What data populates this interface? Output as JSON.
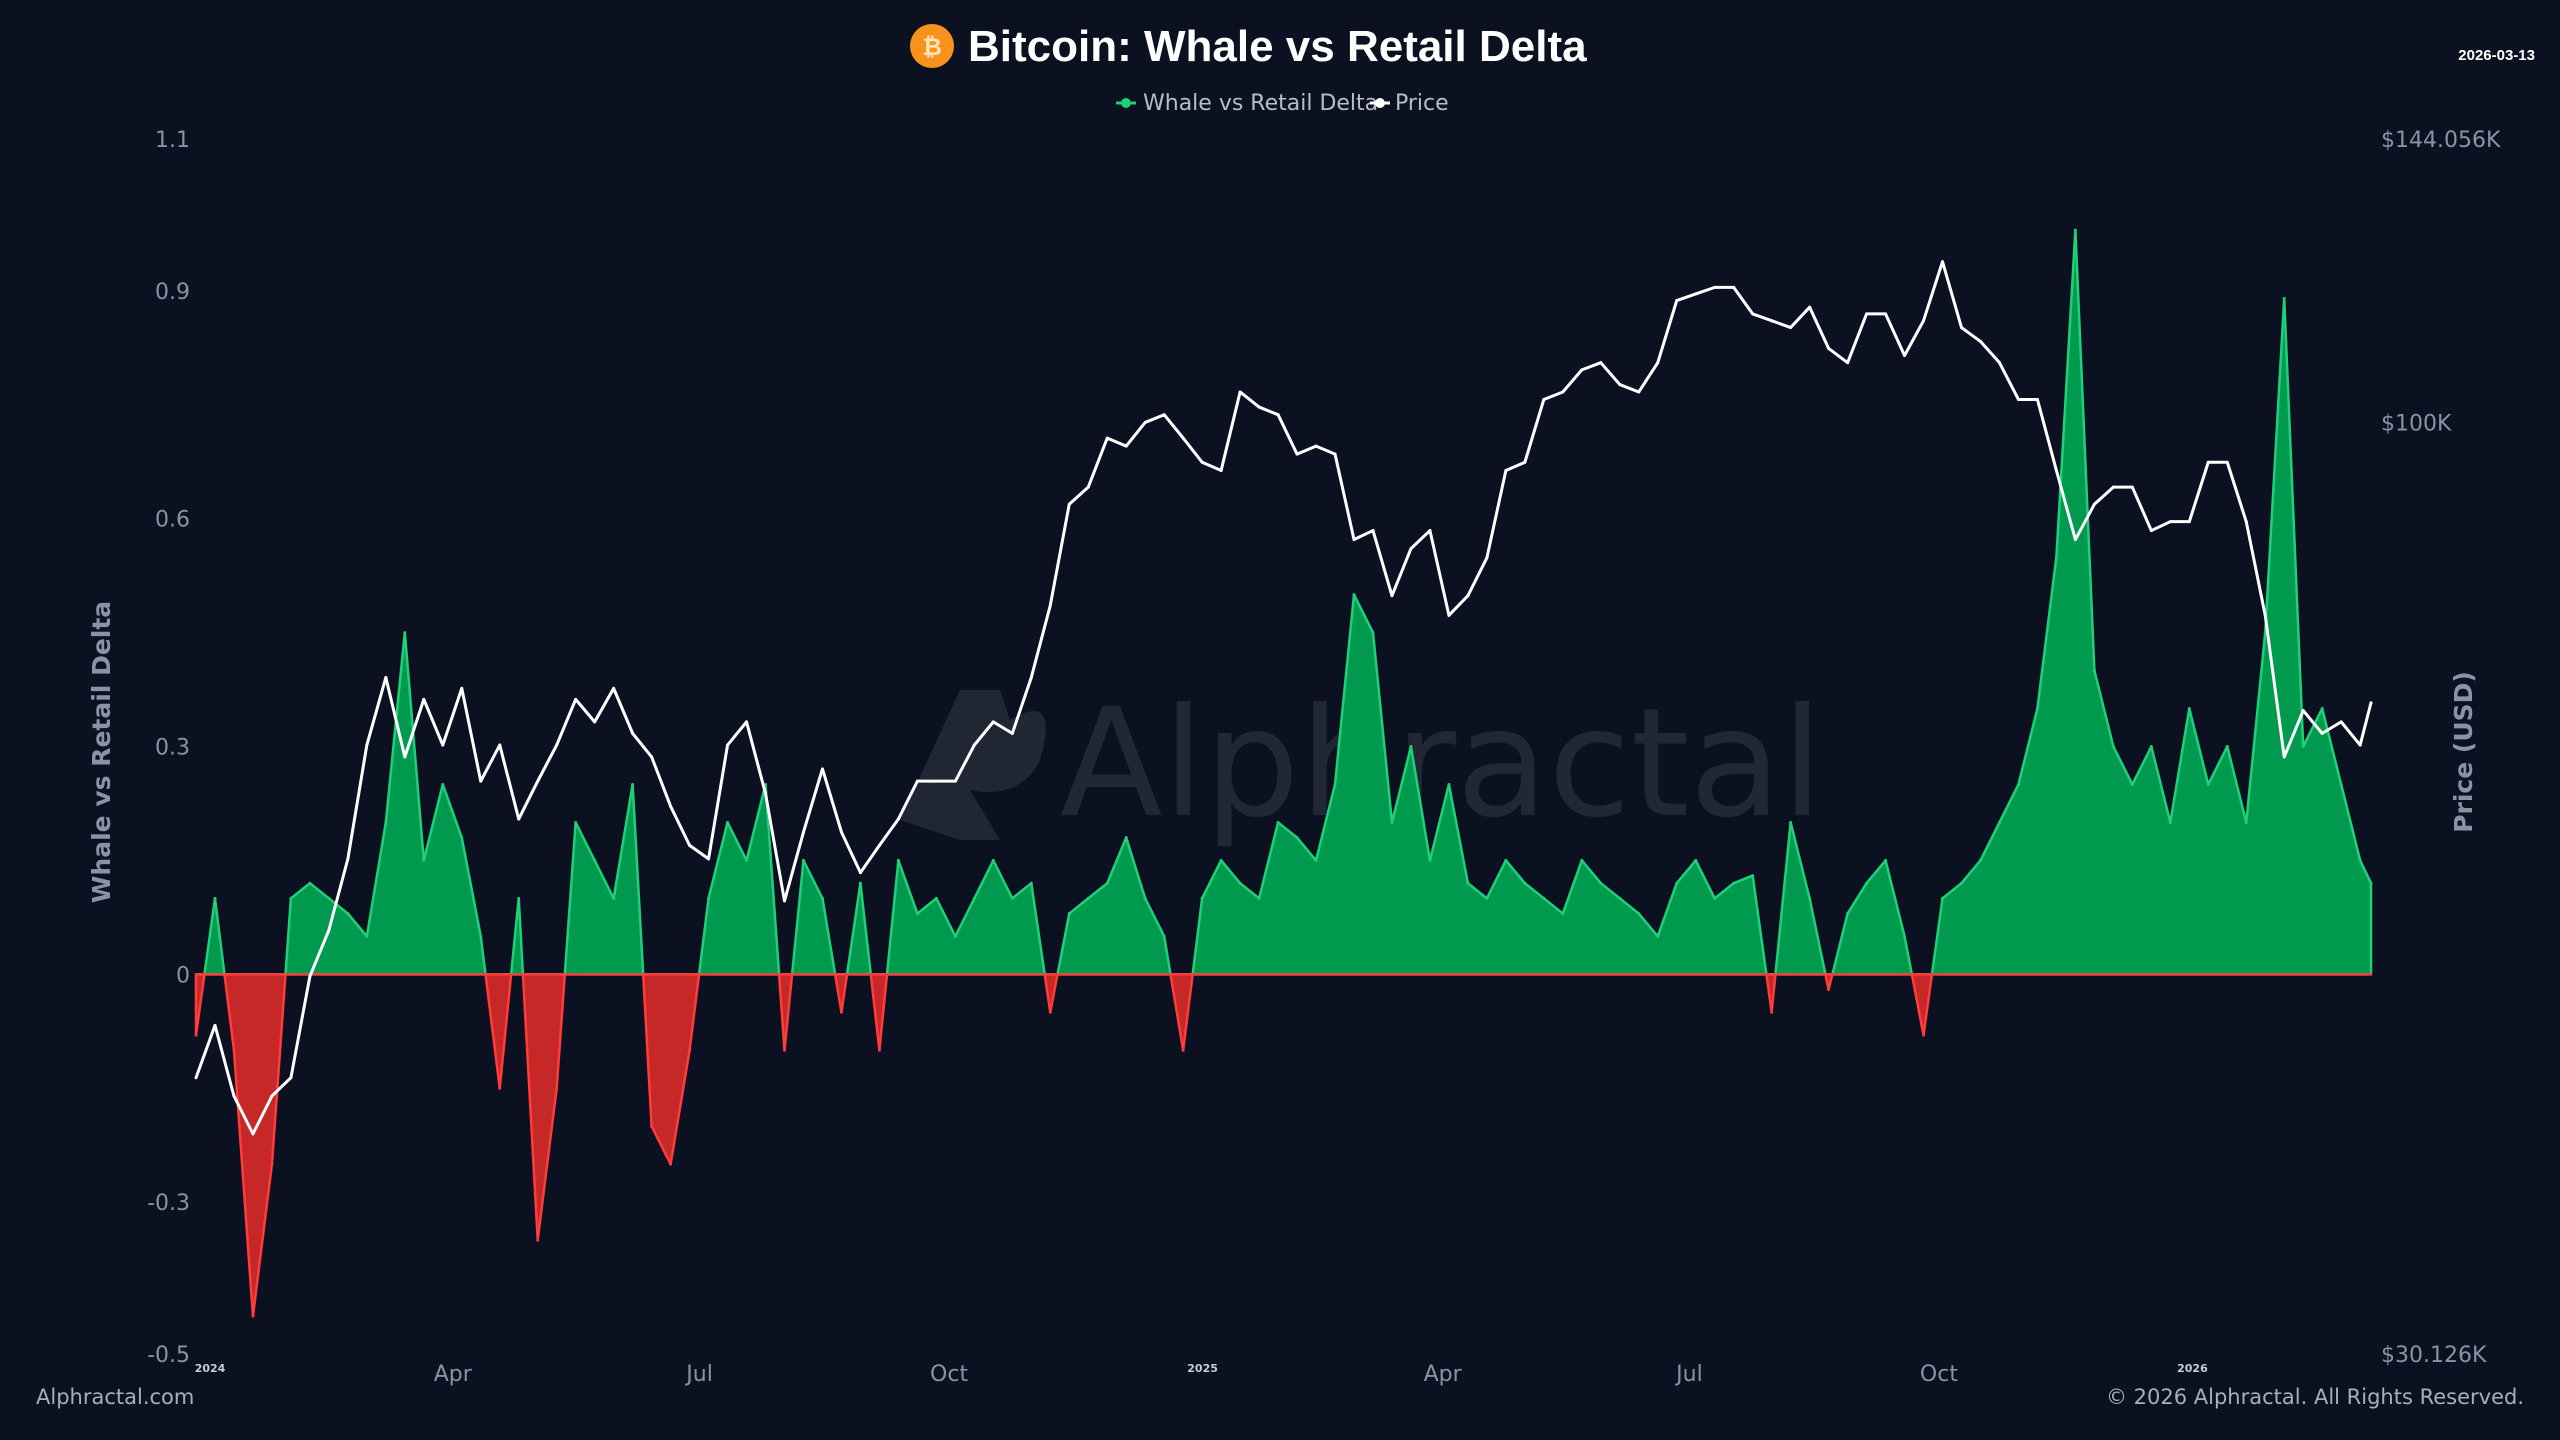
{
  "header": {
    "title": "Bitcoin: Whale vs Retail Delta",
    "date": "2026-03-13",
    "icon": "bitcoin-icon"
  },
  "legend": [
    {
      "label": "Whale vs Retail Delta",
      "color": "#1fd07a"
    },
    {
      "label": "Price",
      "color": "#ffffff"
    }
  ],
  "watermark": "Alphractal",
  "footer": {
    "left": "Alphractal.com",
    "right": "© 2026 Alphractal. All Rights Reserved."
  },
  "colors": {
    "background": "#0b1120",
    "positive_line": "#1fd07a",
    "positive_fill": "#009a4e",
    "negative_line": "#ff3b3b",
    "negative_fill": "#c62828",
    "price": "#ffffff"
  },
  "chart_data": {
    "type": "area",
    "title": "Bitcoin: Whale vs Retail Delta",
    "ylabel": "Whale vs Retail Delta",
    "y2label": "Price (USD)",
    "ylim": [
      -0.5,
      1.1
    ],
    "y2lim": [
      30126,
      144056
    ],
    "y2scale": "log",
    "xlim": [
      "2024-01-01",
      "2026-03-13"
    ],
    "grid": false,
    "legend_position": "top-center",
    "yticks": [
      "1.1",
      "0.9",
      "0.6",
      "0.3",
      "0",
      "-0.3",
      "-0.5"
    ],
    "ytick_values": [
      1.1,
      0.9,
      0.6,
      0.3,
      0,
      -0.3,
      -0.5
    ],
    "y2ticks": [
      "$144.056K",
      "$100K",
      "$30.126K"
    ],
    "y2tick_values": [
      144056,
      100000,
      30126
    ],
    "xticks": [
      {
        "label": "2024",
        "date": "2024-01-01",
        "year": true
      },
      {
        "label": "Apr",
        "date": "2024-04-01"
      },
      {
        "label": "Jul",
        "date": "2024-07-01"
      },
      {
        "label": "Oct",
        "date": "2024-10-01"
      },
      {
        "label": "2025",
        "date": "2025-01-01",
        "year": true
      },
      {
        "label": "Apr",
        "date": "2025-04-01"
      },
      {
        "label": "Jul",
        "date": "2025-07-01"
      },
      {
        "label": "Oct",
        "date": "2025-10-01"
      },
      {
        "label": "2026",
        "date": "2026-01-01",
        "year": true
      }
    ],
    "x": [
      "2024-01-01",
      "2024-01-08",
      "2024-01-15",
      "2024-01-22",
      "2024-01-29",
      "2024-02-05",
      "2024-02-12",
      "2024-02-19",
      "2024-02-26",
      "2024-03-04",
      "2024-03-11",
      "2024-03-18",
      "2024-03-25",
      "2024-04-01",
      "2024-04-08",
      "2024-04-15",
      "2024-04-22",
      "2024-04-29",
      "2024-05-06",
      "2024-05-13",
      "2024-05-20",
      "2024-05-27",
      "2024-06-03",
      "2024-06-10",
      "2024-06-17",
      "2024-06-24",
      "2024-07-01",
      "2024-07-08",
      "2024-07-15",
      "2024-07-22",
      "2024-07-29",
      "2024-08-05",
      "2024-08-12",
      "2024-08-19",
      "2024-08-26",
      "2024-09-02",
      "2024-09-09",
      "2024-09-16",
      "2024-09-23",
      "2024-09-30",
      "2024-10-07",
      "2024-10-14",
      "2024-10-21",
      "2024-10-28",
      "2024-11-04",
      "2024-11-11",
      "2024-11-18",
      "2024-11-25",
      "2024-12-02",
      "2024-12-09",
      "2024-12-16",
      "2024-12-23",
      "2024-12-30",
      "2025-01-06",
      "2025-01-13",
      "2025-01-20",
      "2025-01-27",
      "2025-02-03",
      "2025-02-10",
      "2025-02-17",
      "2025-02-24",
      "2025-03-03",
      "2025-03-10",
      "2025-03-17",
      "2025-03-24",
      "2025-03-31",
      "2025-04-07",
      "2025-04-14",
      "2025-04-21",
      "2025-04-28",
      "2025-05-05",
      "2025-05-12",
      "2025-05-19",
      "2025-05-26",
      "2025-06-02",
      "2025-06-09",
      "2025-06-16",
      "2025-06-23",
      "2025-06-30",
      "2025-07-07",
      "2025-07-14",
      "2025-07-21",
      "2025-07-28",
      "2025-08-04",
      "2025-08-11",
      "2025-08-18",
      "2025-08-25",
      "2025-09-01",
      "2025-09-08",
      "2025-09-15",
      "2025-09-22",
      "2025-09-29",
      "2025-10-06",
      "2025-10-13",
      "2025-10-20",
      "2025-10-27",
      "2025-11-03",
      "2025-11-10",
      "2025-11-17",
      "2025-11-24",
      "2025-12-01",
      "2025-12-08",
      "2025-12-15",
      "2025-12-22",
      "2025-12-29",
      "2026-01-05",
      "2026-01-12",
      "2026-01-19",
      "2026-01-26",
      "2026-02-02",
      "2026-02-09",
      "2026-02-16",
      "2026-02-23",
      "2026-03-02",
      "2026-03-09",
      "2026-03-13"
    ],
    "series": [
      {
        "name": "Whale vs Retail Delta",
        "axis": "left",
        "values": [
          -0.08,
          0.1,
          -0.1,
          -0.45,
          -0.25,
          0.1,
          0.12,
          0.1,
          0.08,
          0.05,
          0.2,
          0.45,
          0.15,
          0.25,
          0.18,
          0.05,
          -0.15,
          0.1,
          -0.35,
          -0.15,
          0.2,
          0.15,
          0.1,
          0.25,
          -0.2,
          -0.25,
          -0.1,
          0.1,
          0.2,
          0.15,
          0.25,
          -0.1,
          0.15,
          0.1,
          -0.05,
          0.12,
          -0.1,
          0.15,
          0.08,
          0.1,
          0.05,
          0.1,
          0.15,
          0.1,
          0.12,
          -0.05,
          0.08,
          0.1,
          0.12,
          0.18,
          0.1,
          0.05,
          -0.1,
          0.1,
          0.15,
          0.12,
          0.1,
          0.2,
          0.18,
          0.15,
          0.25,
          0.5,
          0.45,
          0.2,
          0.3,
          0.15,
          0.25,
          0.12,
          0.1,
          0.15,
          0.12,
          0.1,
          0.08,
          0.15,
          0.12,
          0.1,
          0.08,
          0.05,
          0.12,
          0.15,
          0.1,
          0.12,
          0.13,
          -0.05,
          0.2,
          0.1,
          -0.02,
          0.08,
          0.12,
          0.15,
          0.05,
          -0.08,
          0.1,
          0.12,
          0.15,
          0.2,
          0.25,
          0.35,
          0.55,
          0.98,
          0.4,
          0.3,
          0.25,
          0.3,
          0.2,
          0.35,
          0.25,
          0.3,
          0.2,
          0.45,
          0.89,
          0.3,
          0.35,
          0.25,
          0.15,
          0.12
        ]
      },
      {
        "name": "Price",
        "axis": "right",
        "values": [
          43000,
          46000,
          42000,
          40000,
          42000,
          43000,
          49000,
          52000,
          57000,
          66000,
          72000,
          65000,
          70000,
          66000,
          71000,
          63000,
          66000,
          60000,
          63000,
          66000,
          70000,
          68000,
          71000,
          67000,
          65000,
          61000,
          58000,
          57000,
          66000,
          68000,
          62000,
          54000,
          59000,
          64000,
          59000,
          56000,
          58000,
          60000,
          63000,
          63000,
          63000,
          66000,
          68000,
          67000,
          72000,
          79000,
          90000,
          92000,
          98000,
          97000,
          100000,
          101000,
          98000,
          95000,
          94000,
          104000,
          102000,
          101000,
          96000,
          97000,
          96000,
          86000,
          87000,
          80000,
          85000,
          87000,
          78000,
          80000,
          84000,
          94000,
          95000,
          103000,
          104000,
          107000,
          108000,
          105000,
          104000,
          108000,
          117000,
          118000,
          119000,
          119000,
          115000,
          114000,
          113000,
          116000,
          110000,
          108000,
          115000,
          115000,
          109000,
          114000,
          123000,
          113000,
          111000,
          108000,
          103000,
          103000,
          94000,
          86000,
          90000,
          92000,
          92000,
          87000,
          88000,
          88000,
          95000,
          95000,
          88000,
          78000,
          65000,
          69000,
          67000,
          68000,
          66000,
          69700
        ]
      }
    ]
  }
}
